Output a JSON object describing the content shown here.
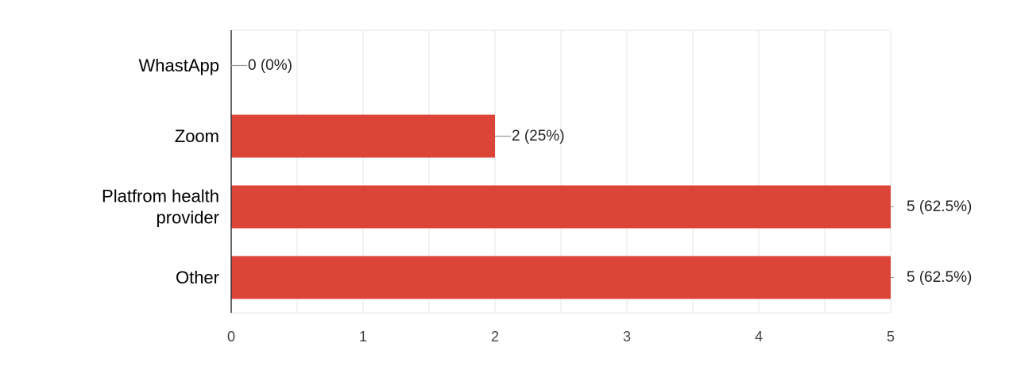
{
  "chart_data": {
    "type": "bar",
    "orientation": "horizontal",
    "categories": [
      "WhastApp",
      "Zoom",
      "Platfrom health provider",
      "Other"
    ],
    "category_lines": [
      [
        "WhastApp"
      ],
      [
        "Zoom"
      ],
      [
        "Platfrom health",
        "provider"
      ],
      [
        "Other"
      ]
    ],
    "values": [
      0,
      2,
      5,
      5
    ],
    "value_labels": [
      "0 (0%)",
      "2 (25%)",
      "5 (62.5%)",
      "5 (62.5%)"
    ],
    "xlim": [
      0,
      5
    ],
    "x_ticks": [
      0,
      1,
      2,
      3,
      4,
      5
    ],
    "x_tick_labels": [
      "0",
      "1",
      "2",
      "3",
      "4",
      "5"
    ],
    "minor_grid": true,
    "grid": true,
    "legend": "none",
    "bar_color": "#db4437",
    "grid_color": "#e6e6e6",
    "axis_color": "#333333",
    "leader_color": "#9e9e9e"
  }
}
